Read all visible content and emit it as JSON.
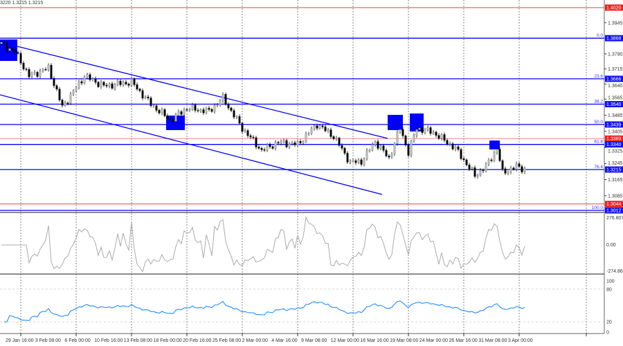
{
  "header": {
    "ohlc_text": "3220 1.3215 1.3215"
  },
  "colors": {
    "level": "#0000ff",
    "red_level": "#e04040",
    "cci": "#aaaaaa",
    "rsi": "#1e8cff",
    "marker": "#0000ff"
  },
  "chart_data": [
    {
      "type": "candlestick",
      "title": "",
      "price_axis": {
        "range": [
          1.3012,
          1.402
        ],
        "ticks": [
          "1.3945",
          "1.3790",
          "1.3715",
          "1.3640",
          "1.3565",
          "1.3485",
          "1.3405",
          "1.3325",
          "1.3245",
          "1.3165",
          "1.3085"
        ]
      },
      "time_axis": {
        "ticks": [
          "29 Jan 16:00",
          "3 Feb 08:00",
          "6 Feb 00:00",
          "10 Feb 16:00",
          "13 Feb 08:00",
          "18 Feb 00:00",
          "20 Feb 16:00",
          "25 Feb 08:00",
          "2 Mar 00:00",
          "4 Mar 16:00",
          "9 Mar 08:00",
          "12 Mar 00:00",
          "16 Mar 16:00",
          "19 Mar 08:00",
          "24 Mar 00:00",
          "26 Mar 16:00",
          "31 Mar 08:00",
          "3 Apr 00:00"
        ]
      },
      "price_path_keypoints": [
        [
          0,
          1.384
        ],
        [
          5,
          1.38
        ],
        [
          10,
          1.368
        ],
        [
          17,
          1.372
        ],
        [
          22,
          1.3525
        ],
        [
          30,
          1.368
        ],
        [
          37,
          1.363
        ],
        [
          47,
          1.365
        ],
        [
          54,
          1.354
        ],
        [
          61,
          1.346
        ],
        [
          67,
          1.352
        ],
        [
          75,
          1.3505
        ],
        [
          80,
          1.357
        ],
        [
          87,
          1.342
        ],
        [
          94,
          1.331
        ],
        [
          100,
          1.335
        ],
        [
          107,
          1.334
        ],
        [
          114,
          1.344
        ],
        [
          120,
          1.338
        ],
        [
          126,
          1.325
        ],
        [
          130,
          1.3255
        ],
        [
          135,
          1.3355
        ],
        [
          140,
          1.327
        ],
        [
          144,
          1.342
        ],
        [
          147,
          1.33
        ],
        [
          150,
          1.342
        ],
        [
          156,
          1.34
        ],
        [
          164,
          1.332
        ],
        [
          171,
          1.3185
        ],
        [
          175,
          1.323
        ],
        [
          179,
          1.332
        ],
        [
          181,
          1.32
        ],
        [
          186,
          1.323
        ],
        [
          189,
          1.3215
        ]
      ],
      "fib_levels": [
        {
          "label": "0.0",
          "price": "1.3868"
        },
        {
          "label": "23.6",
          "price": "1.3666"
        },
        {
          "label": "38.2",
          "price": "1.3540"
        },
        {
          "label": "50.0",
          "price": "1.3439"
        },
        {
          "label": "61.8",
          "price": "1.3340"
        },
        {
          "label": "76.4",
          "price": "1.3215"
        },
        {
          "label": "100.0",
          "price": "1.3012"
        }
      ],
      "red_levels": [
        "1.4020",
        "1.3369",
        "1.3044"
      ]
    },
    {
      "type": "line",
      "name": "CCI",
      "axis_labels": [
        "276.8074",
        "0.00",
        "-274.8655"
      ],
      "range": [
        -274.8655,
        276.8074
      ]
    },
    {
      "type": "line",
      "name": "RSI",
      "axis_labels": [
        "100",
        "80",
        "20",
        "0"
      ],
      "range": [
        0,
        100
      ],
      "levels": [
        80,
        20
      ]
    }
  ]
}
